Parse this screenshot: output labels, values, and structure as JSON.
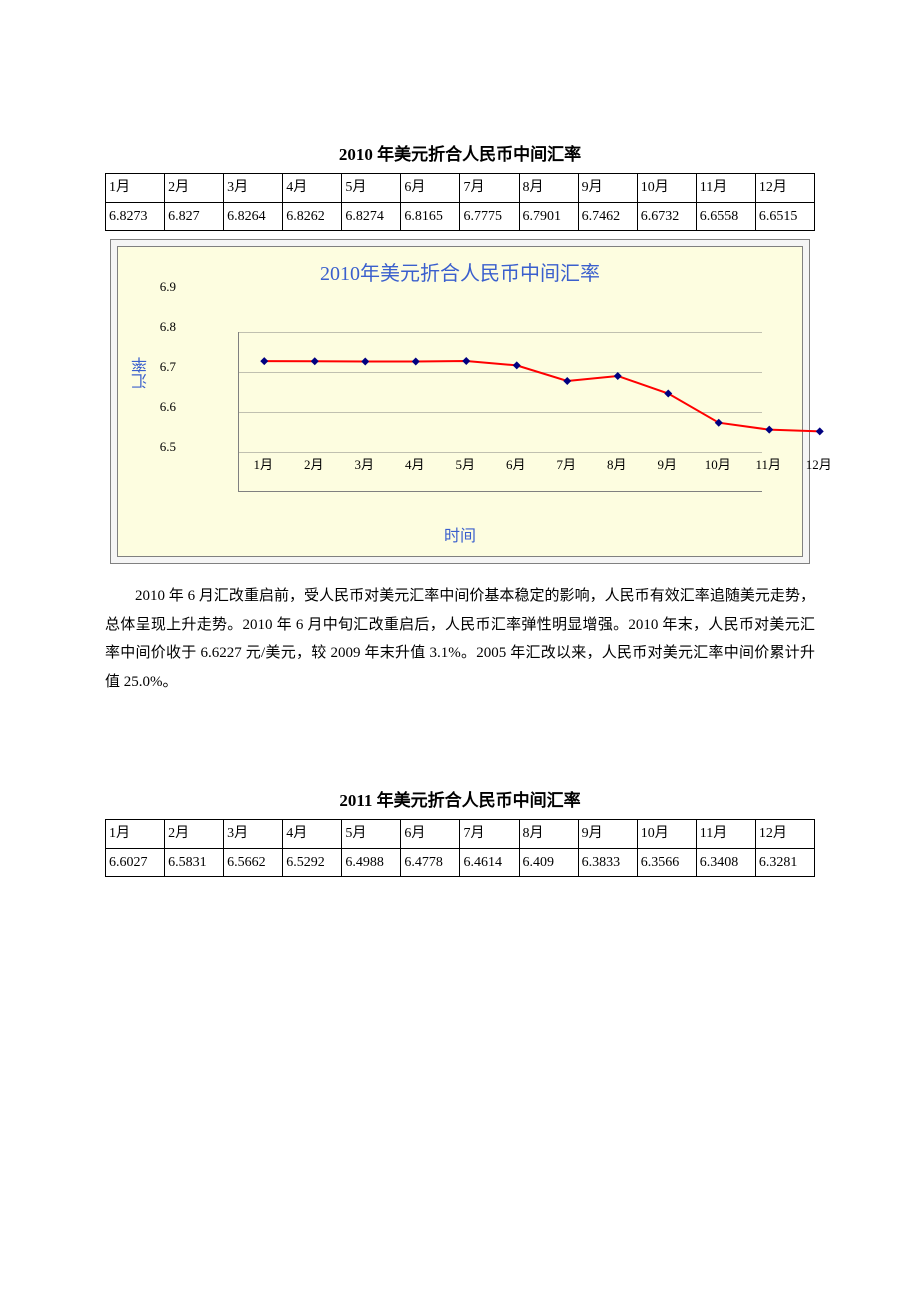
{
  "section2010": {
    "title": "2010 年美元折合人民币中间汇率",
    "table": {
      "months": [
        "1月",
        "2月",
        "3月",
        "4月",
        "5月",
        "6月",
        "7月",
        "8月",
        "9月",
        "10月",
        "11月",
        "12月"
      ],
      "values_display": [
        "6.8273",
        "6.827",
        "6.8264",
        "6.8262",
        "6.8274",
        "6.8165",
        "6.7775",
        "6.7901",
        "6.7462",
        "6.6732",
        "6.6558",
        "6.6515"
      ],
      "values_numeric": [
        6.8273,
        6.827,
        6.8264,
        6.8262,
        6.8274,
        6.8165,
        6.7775,
        6.7901,
        6.7462,
        6.6732,
        6.6558,
        6.6515
      ]
    },
    "chart": {
      "type": "line",
      "title": "2010年美元折合人民币中间汇率",
      "y_label": "汇率",
      "x_label": "时间",
      "categories": [
        "1月",
        "2月",
        "3月",
        "4月",
        "5月",
        "6月",
        "7月",
        "8月",
        "9月",
        "10月",
        "11月",
        "12月"
      ],
      "values": [
        6.8273,
        6.827,
        6.8264,
        6.8262,
        6.8274,
        6.8165,
        6.7775,
        6.7901,
        6.7462,
        6.6732,
        6.6558,
        6.6515
      ],
      "ylim": [
        6.5,
        6.9
      ],
      "ytick_step": 0.1,
      "yticks_labels": [
        "6.5",
        "6.6",
        "6.7",
        "6.8",
        "6.9"
      ],
      "line_color": "#ff0000",
      "marker_color": "#000080",
      "marker_style": "diamond",
      "marker_size": 8,
      "line_width": 2,
      "background_color": "#fdfde0",
      "outer_background": "#f5f5f5",
      "grid_color": "#c0c0b0",
      "title_color": "#3a5fcd",
      "axis_label_color": "#3a5fcd",
      "title_fontsize": 20,
      "axis_label_fontsize": 16,
      "tick_fontsize": 13
    },
    "paragraph": "2010 年 6 月汇改重启前，受人民币对美元汇率中间价基本稳定的影响，人民币有效汇率追随美元走势，总体呈现上升走势。2010 年 6 月中旬汇改重启后，人民币汇率弹性明显增强。2010 年末，人民币对美元汇率中间价收于 6.6227 元/美元，较 2009 年末升值 3.1%。2005 年汇改以来，人民币对美元汇率中间价累计升值 25.0%。"
  },
  "section2011": {
    "title": "2011 年美元折合人民币中间汇率",
    "table": {
      "months": [
        "1月",
        "2月",
        "3月",
        "4月",
        "5月",
        "6月",
        "7月",
        "8月",
        "9月",
        "10月",
        "11月",
        "12月"
      ],
      "values_display": [
        "6.6027",
        "6.5831",
        "6.5662",
        "6.5292",
        "6.4988",
        "6.4778",
        "6.4614",
        "6.409",
        "6.3833",
        "6.3566",
        "6.3408",
        "6.3281"
      ]
    }
  }
}
